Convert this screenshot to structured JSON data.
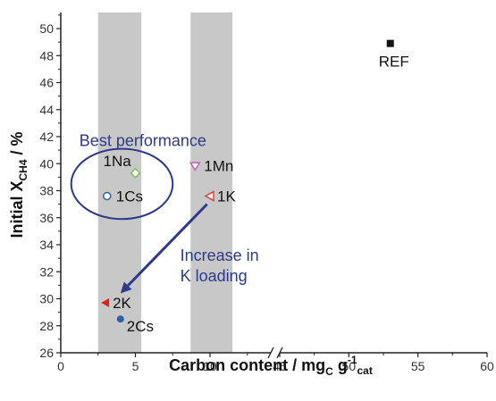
{
  "chart_data": {
    "type": "scatter",
    "title": "",
    "xlabel": {
      "main": "Carbon content / mg",
      "sub": "C",
      "mid": " g",
      "sup": "-1",
      "sub2": "cat"
    },
    "ylabel": {
      "main": "Initial X",
      "sub": "CH4",
      "tail": " / %"
    },
    "x_axis": {
      "segments": [
        {
          "range": [
            0,
            15
          ],
          "ticks": [
            0,
            5,
            10
          ],
          "tick_labels": [
            "0",
            "5",
            "10"
          ]
        },
        {
          "range": [
            45,
            60
          ],
          "ticks": [
            45,
            50,
            55,
            60
          ],
          "tick_labels": [
            "45",
            "50",
            "55",
            "60"
          ]
        }
      ],
      "axis_break": true
    },
    "y_axis": {
      "range": [
        26,
        51
      ],
      "ticks": [
        26,
        28,
        30,
        32,
        34,
        36,
        38,
        40,
        42,
        44,
        46,
        48,
        50
      ],
      "tick_labels": [
        "26",
        "28",
        "30",
        "32",
        "34",
        "36",
        "38",
        "40",
        "42",
        "44",
        "46",
        "48",
        "50"
      ]
    },
    "shaded_bands": [
      {
        "x_range": [
          2.5,
          5.4
        ],
        "color": "#c8c8c8"
      },
      {
        "x_range": [
          8.7,
          11.5
        ],
        "color": "#c8c8c8"
      }
    ],
    "points": [
      {
        "label": "REF",
        "x": 53,
        "y": 48.9,
        "marker": "square-filled",
        "color": "#111111"
      },
      {
        "label": "1Na",
        "x": 5.0,
        "y": 39.3,
        "marker": "diamond-open",
        "color": "#7fbf5f"
      },
      {
        "label": "1Mn",
        "x": 9.0,
        "y": 39.8,
        "marker": "triangle-down-open",
        "color": "#c060c0"
      },
      {
        "label": "1Cs",
        "x": 3.1,
        "y": 37.6,
        "marker": "circle-open",
        "color": "#2e5fa8"
      },
      {
        "label": "1K",
        "x": 10.0,
        "y": 37.6,
        "marker": "triangle-left-open",
        "color": "#e04040"
      },
      {
        "label": "2K",
        "x": 3.0,
        "y": 29.7,
        "marker": "triangle-left-filled",
        "color": "#e02020"
      },
      {
        "label": "2Cs",
        "x": 4.0,
        "y": 28.5,
        "marker": "circle-filled",
        "color": "#2e5fa8"
      }
    ],
    "annotations": [
      {
        "text": "Best performance",
        "x": 5.5,
        "y": 41.7
      },
      {
        "text_lines": [
          "Increase in",
          "K loading"
        ],
        "x": 8.0,
        "y": 32.8
      }
    ],
    "ellipse": {
      "cx": 4.1,
      "cy": 38.5,
      "rx": 3.4,
      "ry": 2.6,
      "color": "#2e3a87"
    },
    "arrow": {
      "from": [
        9.8,
        37.0
      ],
      "to": [
        4.0,
        30.4
      ],
      "color": "#2e3a87"
    },
    "grid": false,
    "legend": "none"
  }
}
